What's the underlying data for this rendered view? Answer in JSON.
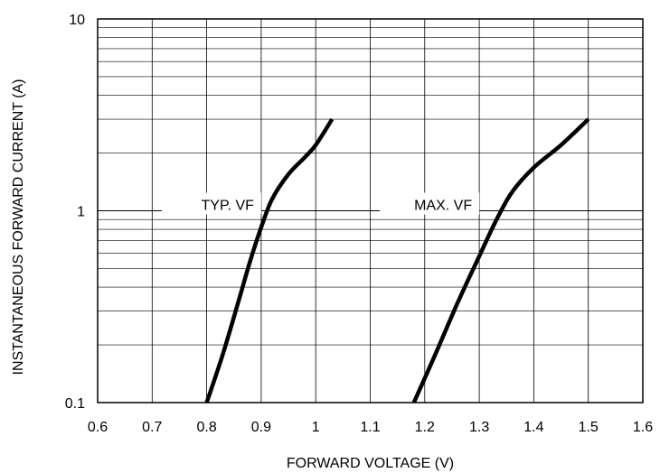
{
  "chart_data": {
    "type": "line",
    "xlabel": "FORWARD VOLTAGE (V)",
    "ylabel": "INSTANTANEOUS FORWARD CURRENT (A)",
    "xlim": [
      0.6,
      1.6
    ],
    "ylim": [
      0.1,
      10
    ],
    "y_scale": "log",
    "grid": true,
    "x_ticks": [
      {
        "value": 0.6,
        "label": "0.6"
      },
      {
        "value": 0.7,
        "label": "0.7"
      },
      {
        "value": 0.8,
        "label": "0.8"
      },
      {
        "value": 0.9,
        "label": "0.9"
      },
      {
        "value": 1.0,
        "label": "1"
      },
      {
        "value": 1.1,
        "label": "1.1"
      },
      {
        "value": 1.2,
        "label": "1.2"
      },
      {
        "value": 1.3,
        "label": "1.3"
      },
      {
        "value": 1.4,
        "label": "1.4"
      },
      {
        "value": 1.5,
        "label": "1.5"
      },
      {
        "value": 1.6,
        "label": "1.6"
      }
    ],
    "y_ticks": [
      {
        "value": 0.1,
        "label": "0.1"
      },
      {
        "value": 1,
        "label": "1"
      },
      {
        "value": 10,
        "label": "10"
      }
    ],
    "series": [
      {
        "name": "TYP. VF",
        "color": "#000000",
        "label_at": {
          "x": 0.9,
          "y": 1.0
        },
        "points": [
          {
            "x": 0.8,
            "y": 0.1
          },
          {
            "x": 0.83,
            "y": 0.18
          },
          {
            "x": 0.86,
            "y": 0.35
          },
          {
            "x": 0.88,
            "y": 0.55
          },
          {
            "x": 0.9,
            "y": 0.82
          },
          {
            "x": 0.92,
            "y": 1.15
          },
          {
            "x": 0.95,
            "y": 1.55
          },
          {
            "x": 0.98,
            "y": 1.9
          },
          {
            "x": 1.0,
            "y": 2.2
          },
          {
            "x": 1.03,
            "y": 3.0
          }
        ]
      },
      {
        "name": "MAX. VF",
        "color": "#000000",
        "label_at": {
          "x": 1.3,
          "y": 1.0
        },
        "points": [
          {
            "x": 1.18,
            "y": 0.1
          },
          {
            "x": 1.22,
            "y": 0.18
          },
          {
            "x": 1.26,
            "y": 0.33
          },
          {
            "x": 1.3,
            "y": 0.58
          },
          {
            "x": 1.33,
            "y": 0.88
          },
          {
            "x": 1.36,
            "y": 1.25
          },
          {
            "x": 1.4,
            "y": 1.68
          },
          {
            "x": 1.45,
            "y": 2.2
          },
          {
            "x": 1.5,
            "y": 3.0
          }
        ]
      }
    ]
  }
}
